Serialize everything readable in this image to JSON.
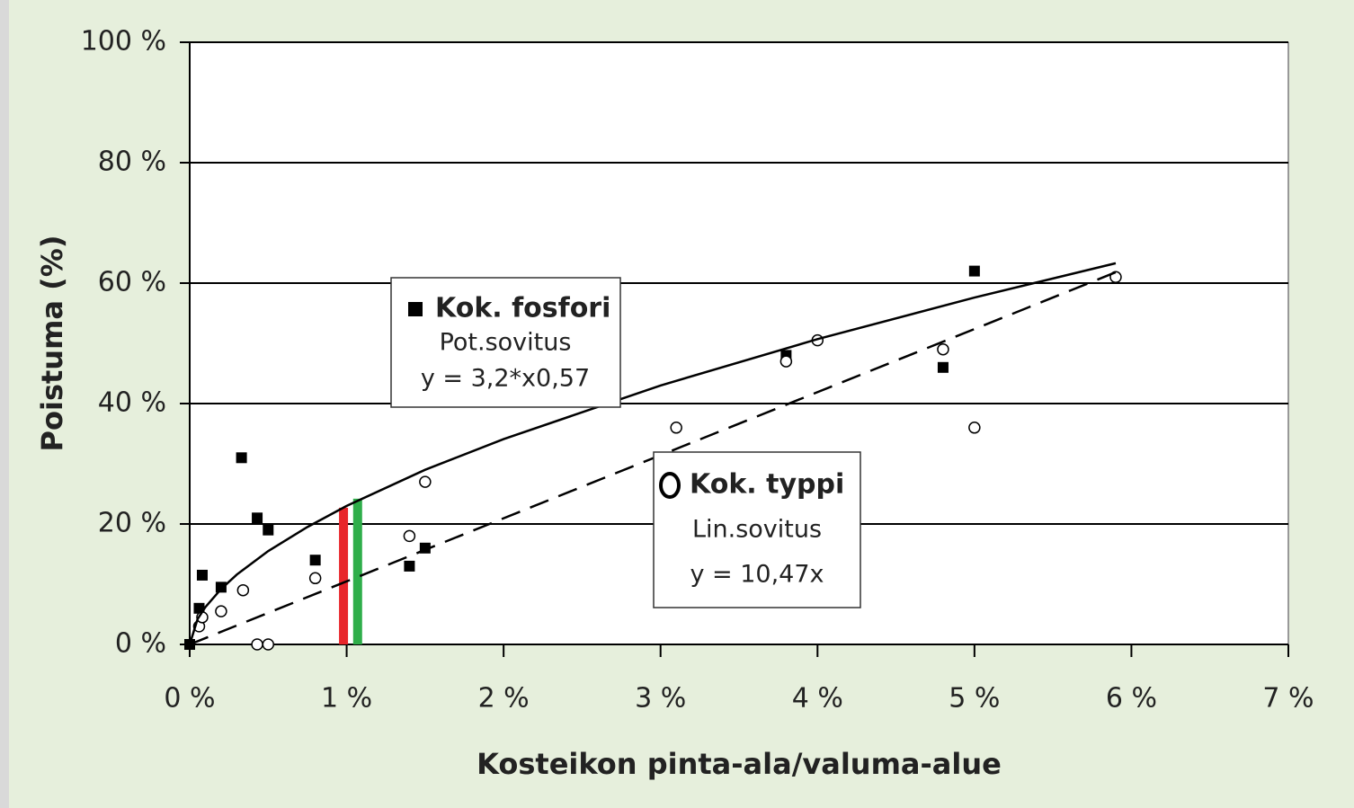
{
  "chart_data": {
    "type": "scatter",
    "xlabel": "Kosteikon pinta-ala/valuma-alue",
    "ylabel": "Poistuma (%)",
    "xlim": [
      0,
      7
    ],
    "ylim": [
      0,
      100
    ],
    "xticks": [
      {
        "value": 0,
        "label": "0 %"
      },
      {
        "value": 1,
        "label": "1 %"
      },
      {
        "value": 2,
        "label": "2 %"
      },
      {
        "value": 3,
        "label": "3 %"
      },
      {
        "value": 4,
        "label": "4 %"
      },
      {
        "value": 5,
        "label": "5 %"
      },
      {
        "value": 6,
        "label": "6 %"
      },
      {
        "value": 7,
        "label": "7 %"
      }
    ],
    "yticks": [
      {
        "value": 0,
        "label": "0 %"
      },
      {
        "value": 20,
        "label": "20 %"
      },
      {
        "value": 40,
        "label": "40 %"
      },
      {
        "value": 60,
        "label": "60 %"
      },
      {
        "value": 80,
        "label": "80 %"
      },
      {
        "value": 100,
        "label": "100 %"
      }
    ],
    "grid": true,
    "series": [
      {
        "name": "Kok. fosfori",
        "marker": "square",
        "color": "#000000",
        "x": [
          0,
          0.06,
          0.08,
          0.2,
          0.33,
          0.43,
          0.5,
          0.8,
          1.4,
          1.5,
          3.8,
          4.8,
          5.0
        ],
        "values": [
          0,
          6,
          11.5,
          9.5,
          31,
          21,
          19,
          14,
          13,
          16,
          48,
          46,
          62
        ]
      },
      {
        "name": "Kok. typpi",
        "marker": "circle",
        "color": "#000000",
        "x": [
          0.06,
          0.08,
          0.2,
          0.34,
          0.43,
          0.5,
          0.8,
          1.4,
          1.5,
          3.1,
          3.8,
          4.0,
          4.8,
          5.0,
          5.9
        ],
        "values": [
          3,
          4.5,
          5.5,
          9,
          0,
          0,
          11,
          18,
          27,
          36,
          47,
          50.5,
          49,
          36,
          61
        ]
      },
      {
        "name": "Pot.sovitus",
        "equation": "y = 3,2*x0,57",
        "marker": "line",
        "dash": false,
        "color": "#000000",
        "x": [
          0,
          0.05,
          0.1,
          0.2,
          0.3,
          0.5,
          0.75,
          1,
          1.5,
          2,
          3,
          4,
          5,
          5.9
        ],
        "values": [
          0,
          4.2,
          6.2,
          9.2,
          11.6,
          15.5,
          19.5,
          23,
          29.0,
          34.1,
          43.0,
          50.7,
          57.6,
          63.3
        ]
      },
      {
        "name": "Lin.sovitus",
        "equation": "y = 10,47x",
        "marker": "line",
        "dash": true,
        "color": "#000000",
        "x": [
          0,
          5.9
        ],
        "values": [
          0,
          61.8
        ]
      }
    ],
    "markers": [
      {
        "color": "#e8262b",
        "x": 0.98,
        "value": 22.7
      },
      {
        "color": "#2fae4a",
        "x": 1.07,
        "value": 24.2
      }
    ]
  }
}
